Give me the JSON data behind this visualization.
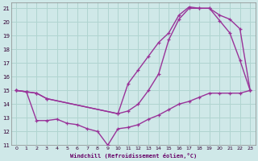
{
  "bg_color": "#cfe8e8",
  "grid_color": "#b0d4d0",
  "line_color": "#993399",
  "xlabel": "Windchill (Refroidissement éolien,°C)",
  "xlim": [
    -0.5,
    23.5
  ],
  "ylim": [
    11,
    21.4
  ],
  "xticks": [
    0,
    1,
    2,
    3,
    4,
    5,
    6,
    7,
    8,
    9,
    10,
    11,
    12,
    13,
    14,
    15,
    16,
    17,
    18,
    19,
    20,
    21,
    22,
    23
  ],
  "yticks": [
    11,
    12,
    13,
    14,
    15,
    16,
    17,
    18,
    19,
    20,
    21
  ],
  "line1_x": [
    0,
    1,
    2,
    3,
    10,
    11,
    12,
    13,
    14,
    15,
    16,
    17,
    18,
    19,
    20,
    21,
    22,
    23
  ],
  "line1_y": [
    15.0,
    14.9,
    14.8,
    14.4,
    13.3,
    13.5,
    14.0,
    15.0,
    16.2,
    18.7,
    20.2,
    21.0,
    21.0,
    21.0,
    20.1,
    19.2,
    17.2,
    15.0
  ],
  "line2_x": [
    0,
    1,
    2,
    3,
    4,
    5,
    6,
    7,
    8,
    9,
    10,
    11,
    12,
    13,
    14,
    15,
    16,
    17,
    18,
    19,
    20,
    21,
    22,
    23
  ],
  "line2_y": [
    15.0,
    14.9,
    12.8,
    12.8,
    12.9,
    12.6,
    12.5,
    12.2,
    12.0,
    11.0,
    12.2,
    12.3,
    12.5,
    12.9,
    13.2,
    13.6,
    14.0,
    14.2,
    14.5,
    14.8,
    14.8,
    14.8,
    14.8,
    15.0
  ],
  "line3_x": [
    0,
    1,
    2,
    3,
    10,
    11,
    12,
    13,
    14,
    15,
    16,
    17,
    18,
    19,
    20,
    21,
    22,
    23
  ],
  "line3_y": [
    15.0,
    14.9,
    14.8,
    14.4,
    13.3,
    15.5,
    16.5,
    17.5,
    18.5,
    19.2,
    20.5,
    21.1,
    21.0,
    21.0,
    20.5,
    20.2,
    19.5,
    15.0
  ]
}
